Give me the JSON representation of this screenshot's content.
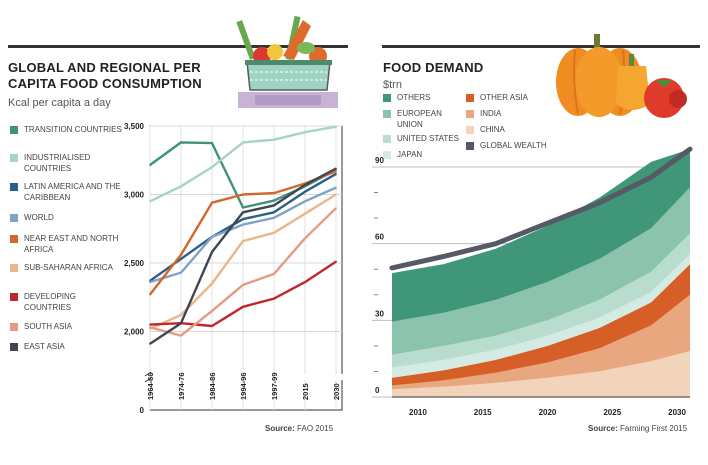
{
  "left": {
    "title_line1": "GLOBAL AND REGIONAL PER",
    "title_line2": "CAPITA FOOD CONSUMPTION",
    "subtitle": "Kcal per capita a day",
    "source_label": "Source:",
    "source_text": "FAO 2015"
  },
  "right": {
    "title": "FOOD DEMAND",
    "subtitle": "$trn",
    "source_label": "Source:",
    "source_text": "Farming First 2015"
  },
  "chart_data": [
    {
      "type": "line",
      "x": [
        "1964-66",
        "1974-76",
        "1984-86",
        "1994-96",
        "1997-99",
        "2015",
        "2030"
      ],
      "ylim": [
        0,
        3500
      ],
      "y_ticks": [
        2000,
        2500,
        3000,
        3500
      ],
      "y_tick_labels": [
        "2,000",
        "2,500",
        "3,000",
        "3,500"
      ],
      "y_zero_label": "0",
      "series": [
        {
          "name": "TRANSITION COUNTRIES",
          "color": "#3f9274",
          "values": [
            3215,
            3380,
            3375,
            2905,
            2955,
            3060,
            3180
          ]
        },
        {
          "name": "INDUSTRIALISED COUNTRIES",
          "color": "#a6d4bf",
          "values": [
            2950,
            3060,
            3200,
            3380,
            3400,
            3455,
            3495
          ]
        },
        {
          "name": "LATIN AMERICA AND THE CARIBBEAN",
          "color": "#2c5f8a",
          "values": [
            2370,
            2530,
            2690,
            2820,
            2870,
            3020,
            3150
          ]
        },
        {
          "name": "WORLD",
          "color": "#7fa3c6",
          "values": [
            2360,
            2430,
            2690,
            2780,
            2830,
            2950,
            3050
          ]
        },
        {
          "name": "NEAR EAST AND NORTH AFRICA",
          "color": "#d0692a",
          "values": [
            2270,
            2560,
            2940,
            3000,
            3010,
            3080,
            3170
          ]
        },
        {
          "name": "SUB-SAHARAN AFRICA",
          "color": "#eab68b",
          "values": [
            2020,
            2120,
            2350,
            2660,
            2720,
            2860,
            3000
          ]
        },
        {
          "name": "DEVELOPING COUNTRIES",
          "color": "#c0272d",
          "values": [
            2050,
            2060,
            2040,
            2180,
            2240,
            2360,
            2510
          ]
        },
        {
          "name": "SOUTH ASIA",
          "color": "#e59b82",
          "values": [
            2030,
            1970,
            2150,
            2340,
            2420,
            2680,
            2900
          ]
        },
        {
          "name": "EAST ASIA",
          "color": "#404552",
          "values": [
            1910,
            2060,
            2580,
            2870,
            2920,
            3070,
            3190
          ]
        }
      ]
    },
    {
      "type": "area",
      "x": [
        2008,
        2012,
        2016,
        2020,
        2024,
        2028,
        2031
      ],
      "x_ticks": [
        2010,
        2015,
        2020,
        2025,
        2030
      ],
      "ylim": [
        0,
        100
      ],
      "y_ticks": [
        0,
        30,
        60,
        90
      ],
      "stacked": true,
      "series": [
        {
          "name": "CHINA",
          "color": "#f2d4bb",
          "values": [
            3,
            4,
            5.5,
            7.5,
            10,
            14,
            18
          ]
        },
        {
          "name": "INDIA",
          "color": "#e8a77f",
          "values": [
            1.5,
            2.5,
            4,
            6,
            9,
            14,
            22
          ]
        },
        {
          "name": "OTHER ASIA",
          "color": "#d65f28",
          "values": [
            3,
            4,
            5,
            6.5,
            8,
            9,
            12
          ]
        },
        {
          "name": "JAPAN",
          "color": "#d3ebe2",
          "values": [
            4,
            4,
            4,
            4,
            4,
            4,
            4
          ]
        },
        {
          "name": "UNITED STATES",
          "color": "#b8dccd",
          "values": [
            5,
            5.5,
            5.5,
            6,
            7,
            8,
            8
          ]
        },
        {
          "name": "EUROPEAN UNION",
          "color": "#8cc3ac",
          "values": [
            13,
            13,
            14,
            15,
            16,
            17,
            18
          ]
        },
        {
          "name": "OTHERS",
          "color": "#3f9678",
          "values": [
            19,
            19,
            20,
            22,
            24,
            26,
            15
          ]
        }
      ],
      "global_wealth": {
        "name": "GLOBAL WEALTH",
        "color": "#555a66",
        "values": [
          50.5,
          55,
          60,
          68,
          76,
          86,
          97
        ]
      }
    }
  ]
}
